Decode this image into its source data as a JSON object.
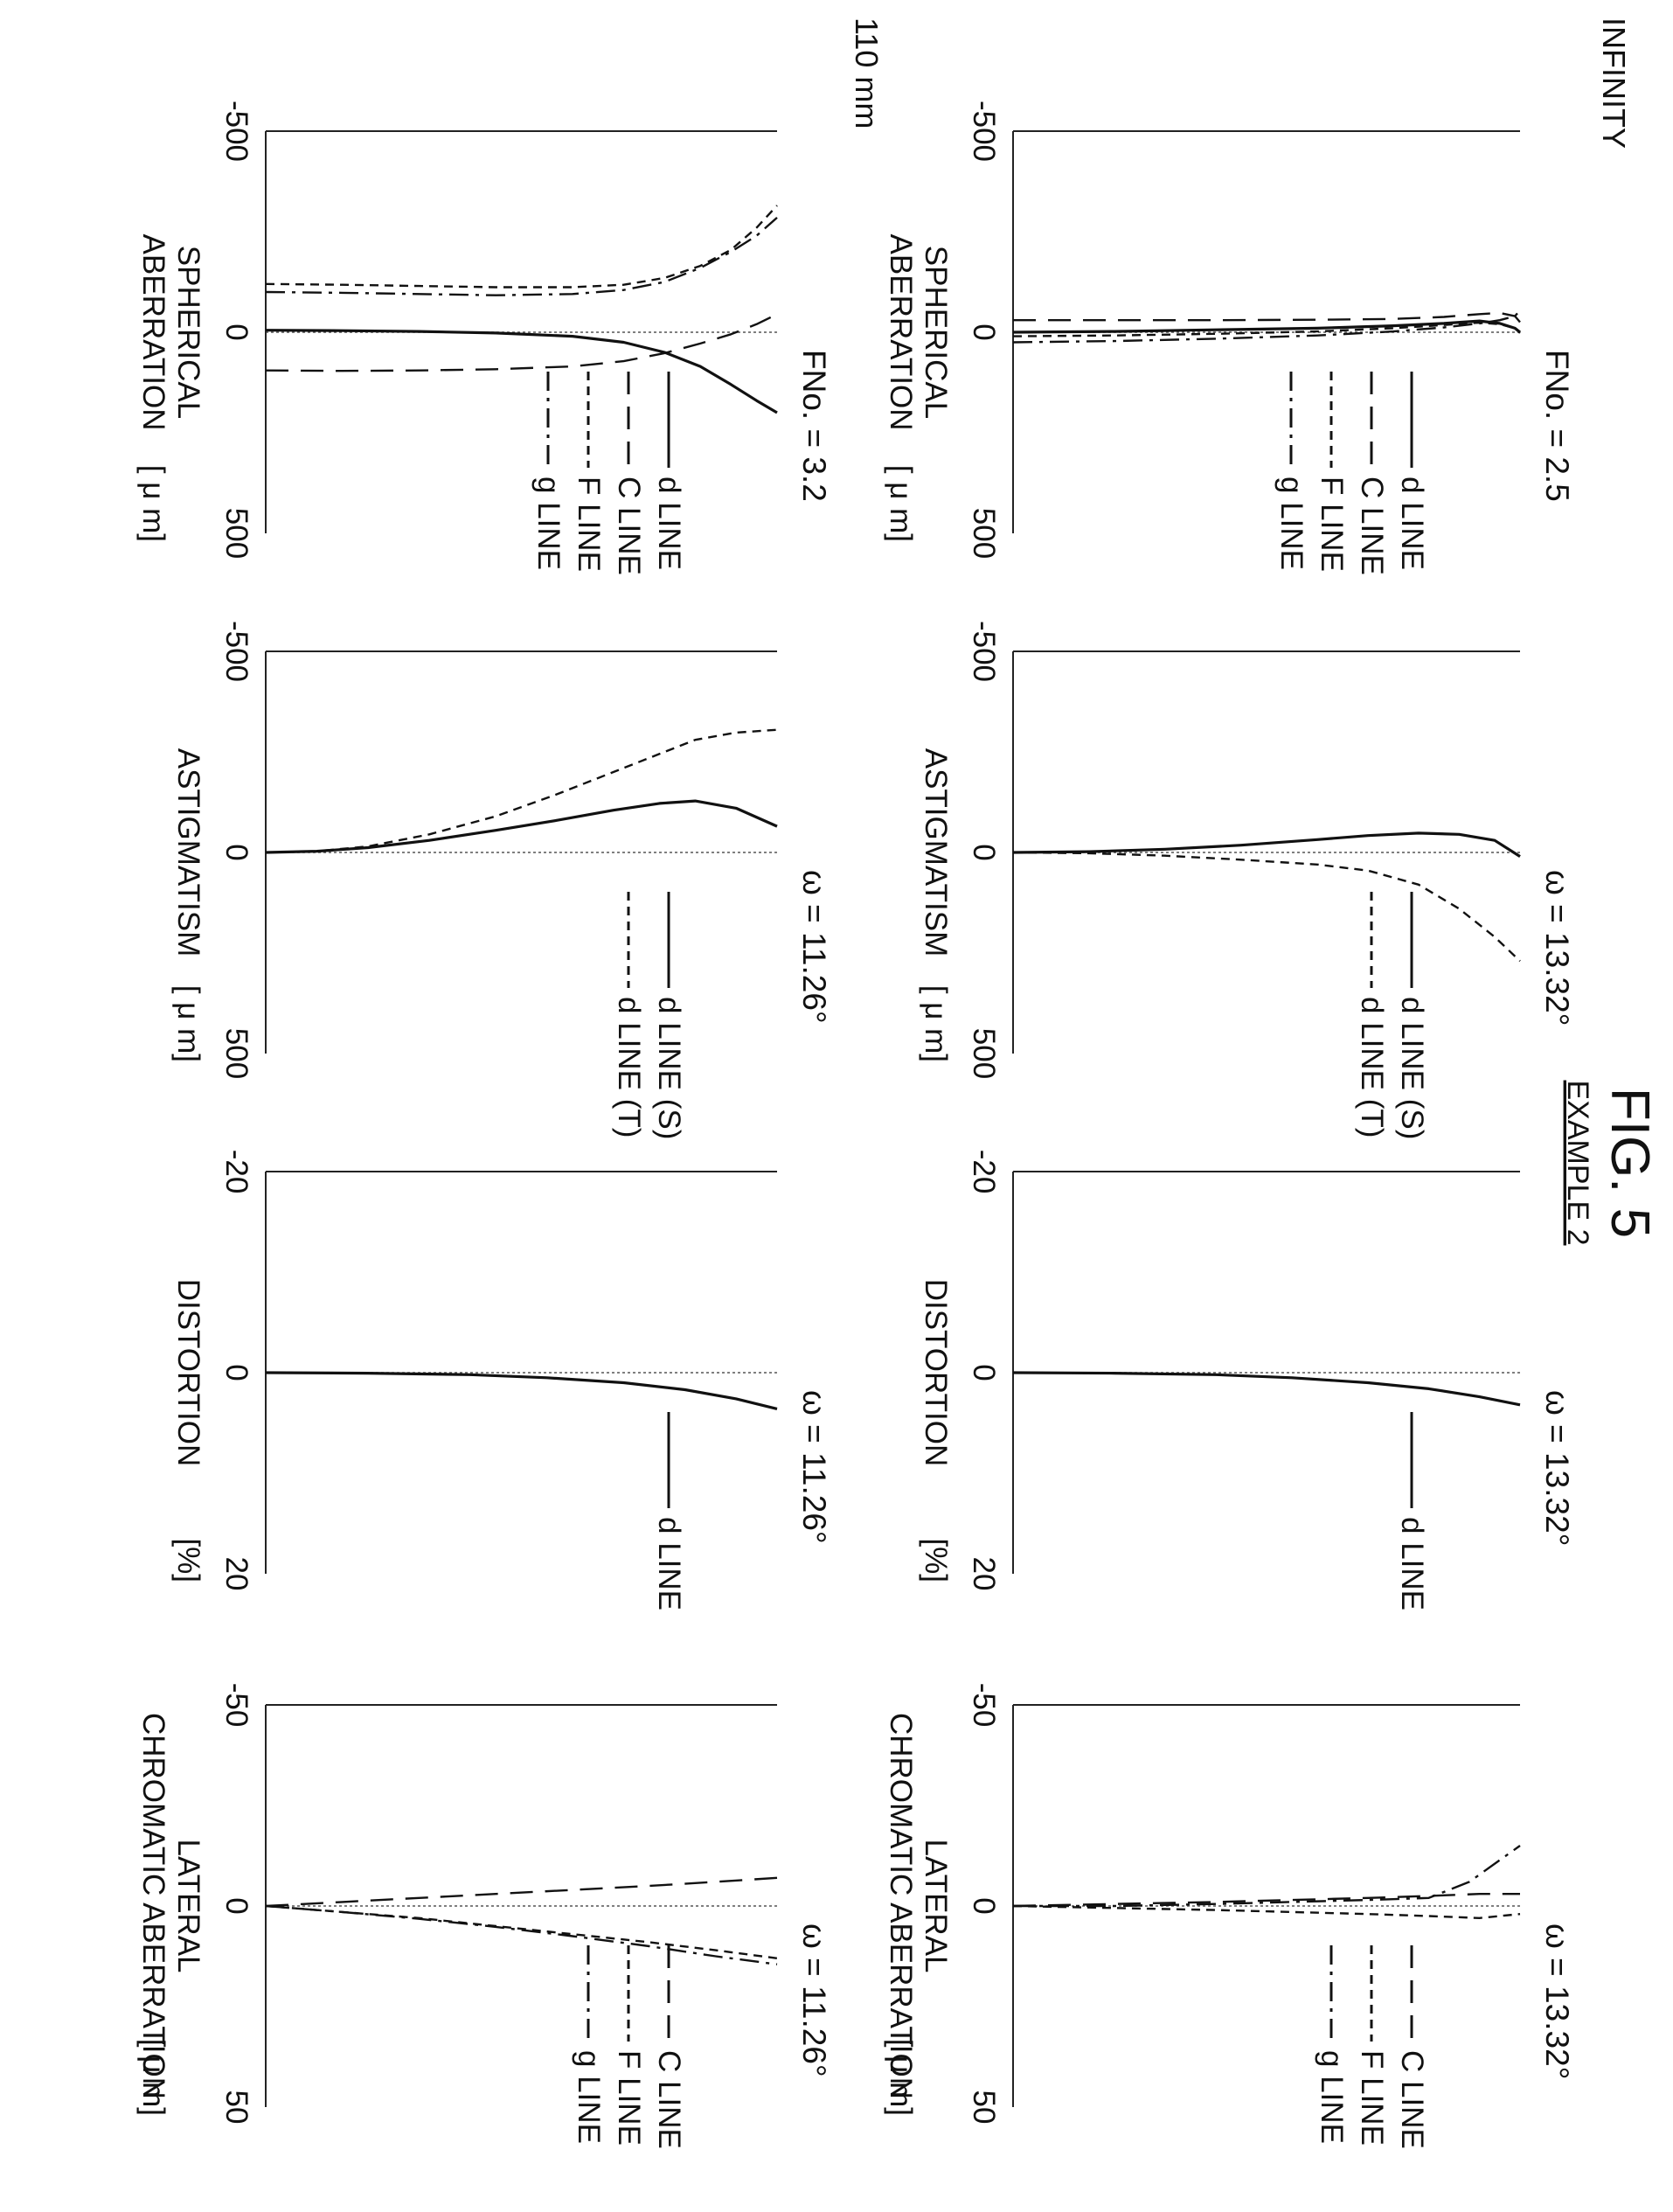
{
  "figure": {
    "title": "FIG. 5",
    "subtitle": "EXAMPLE 2"
  },
  "rows": [
    {
      "condition": "INFINITY"
    },
    {
      "condition": "110 mm"
    }
  ],
  "legends": {
    "spherical": [
      {
        "label": "d LINE",
        "dash": "solid"
      },
      {
        "label": "C LINE",
        "dash": "long-dash"
      },
      {
        "label": "F LINE",
        "dash": "short-dash"
      },
      {
        "label": "g LINE",
        "dash": "dash-dot"
      }
    ],
    "astigmatism": [
      {
        "label": "d LINE (S)",
        "dash": "solid"
      },
      {
        "label": "d LINE (T)",
        "dash": "short-dash"
      }
    ],
    "distortion": [
      {
        "label": "d LINE",
        "dash": "solid"
      }
    ],
    "lateral": [
      {
        "label": "C LINE",
        "dash": "long-dash"
      },
      {
        "label": "F LINE",
        "dash": "short-dash"
      },
      {
        "label": "g LINE",
        "dash": "dash-dot"
      }
    ]
  },
  "chart_data": [
    {
      "id": "sph-inf",
      "type": "line",
      "row": 0,
      "col": 0,
      "legend": "spherical",
      "param_label": "FNo. = 2.5",
      "xlabel": "SPHERICAL ABERRATION",
      "unit": "[ μ m]",
      "xlim": [
        -500,
        500
      ],
      "xticks": [
        "-500",
        "0",
        "500"
      ],
      "ylim": [
        0,
        1
      ],
      "series": [
        {
          "name": "d LINE",
          "dash": "solid",
          "x": [
            0,
            -2,
            -6,
            -10,
            -16,
            -22,
            -28,
            -22,
            -10,
            0
          ],
          "y": [
            0,
            0.2,
            0.4,
            0.6,
            0.75,
            0.85,
            0.92,
            0.96,
            0.99,
            1
          ]
        },
        {
          "name": "C LINE",
          "dash": "long-dash",
          "x": [
            -30,
            -30,
            -30,
            -31,
            -33,
            -38,
            -45,
            -48,
            -40,
            -25
          ],
          "y": [
            0,
            0.2,
            0.4,
            0.6,
            0.75,
            0.85,
            0.92,
            0.96,
            0.99,
            1
          ]
        },
        {
          "name": "F LINE",
          "dash": "short-dash",
          "x": [
            10,
            8,
            4,
            -2,
            -10,
            -18,
            -24,
            -20,
            -10,
            2
          ],
          "y": [
            0,
            0.2,
            0.4,
            0.6,
            0.75,
            0.85,
            0.92,
            0.96,
            0.99,
            1
          ]
        },
        {
          "name": "g LINE",
          "dash": "dash-dot",
          "x": [
            25,
            22,
            16,
            8,
            -2,
            -12,
            -22,
            -30,
            -40,
            -55
          ],
          "y": [
            0,
            0.2,
            0.4,
            0.6,
            0.75,
            0.85,
            0.92,
            0.96,
            0.99,
            1
          ]
        }
      ]
    },
    {
      "id": "ast-inf",
      "type": "line",
      "row": 0,
      "col": 1,
      "legend": "astigmatism",
      "param_label": "ω = 13.32°",
      "xlabel": "ASTIGMATISM",
      "unit": "[ μ m]",
      "xlim": [
        -500,
        500
      ],
      "xticks": [
        "-500",
        "0",
        "500"
      ],
      "ylim": [
        0,
        1
      ],
      "series": [
        {
          "name": "d LINE (S)",
          "dash": "solid",
          "x": [
            0,
            -2,
            -8,
            -18,
            -32,
            -42,
            -48,
            -45,
            -30,
            10
          ],
          "y": [
            0,
            0.15,
            0.3,
            0.45,
            0.6,
            0.7,
            0.8,
            0.88,
            0.95,
            1
          ]
        },
        {
          "name": "d LINE (T)",
          "dash": "short-dash",
          "x": [
            0,
            2,
            8,
            18,
            30,
            45,
            80,
            140,
            210,
            270
          ],
          "y": [
            0,
            0.15,
            0.3,
            0.45,
            0.6,
            0.7,
            0.8,
            0.88,
            0.95,
            1
          ]
        }
      ]
    },
    {
      "id": "dist-inf",
      "type": "line",
      "row": 0,
      "col": 2,
      "legend": "distortion",
      "param_label": "ω = 13.32°",
      "xlabel": "DISTORTION",
      "unit": "[%]",
      "xlim": [
        -20,
        20
      ],
      "xticks": [
        "-20",
        "0",
        "20"
      ],
      "ylim": [
        0,
        1
      ],
      "series": [
        {
          "name": "d LINE",
          "dash": "solid",
          "x": [
            0,
            0.05,
            0.2,
            0.5,
            1.0,
            1.6,
            2.4,
            3.2
          ],
          "y": [
            0,
            0.2,
            0.4,
            0.55,
            0.7,
            0.82,
            0.92,
            1
          ]
        }
      ]
    },
    {
      "id": "lat-inf",
      "type": "line",
      "row": 0,
      "col": 3,
      "legend": "lateral",
      "param_label": "ω = 13.32°",
      "xlabel": "LATERAL CHROMATIC ABERRATION",
      "unit": "[ μ m]",
      "xlim": [
        -50,
        50
      ],
      "xticks": [
        "-50",
        "0",
        "50"
      ],
      "ylim": [
        0,
        1
      ],
      "series": [
        {
          "name": "C LINE",
          "dash": "long-dash",
          "x": [
            0,
            -0.5,
            -1,
            -1.5,
            -2,
            -2.5,
            -3,
            -3
          ],
          "y": [
            0,
            0.2,
            0.4,
            0.55,
            0.7,
            0.82,
            0.92,
            1
          ]
        },
        {
          "name": "F LINE",
          "dash": "short-dash",
          "x": [
            0,
            0.5,
            1,
            1.5,
            2,
            2.5,
            3,
            2
          ],
          "y": [
            0,
            0.2,
            0.4,
            0.55,
            0.7,
            0.82,
            0.92,
            1
          ]
        },
        {
          "name": "g LINE",
          "dash": "dash-dot",
          "x": [
            0,
            0,
            -0.5,
            -1,
            -1.5,
            -2,
            -6,
            -15
          ],
          "y": [
            0,
            0.2,
            0.4,
            0.55,
            0.7,
            0.82,
            0.9,
            1
          ]
        }
      ]
    },
    {
      "id": "sph-110",
      "type": "line",
      "row": 1,
      "col": 0,
      "legend": "spherical",
      "param_label": "FNo. = 3.2",
      "xlabel": "SPHERICAL ABERRATION",
      "unit": "[ μ m]",
      "xlim": [
        -500,
        500
      ],
      "xticks": [
        "-500",
        "0",
        "500"
      ],
      "ylim": [
        0,
        1
      ],
      "series": [
        {
          "name": "d LINE",
          "dash": "solid",
          "x": [
            -5,
            -4,
            -2,
            2,
            10,
            25,
            50,
            85,
            130,
            170,
            200
          ],
          "y": [
            0,
            0.15,
            0.3,
            0.45,
            0.6,
            0.7,
            0.78,
            0.85,
            0.91,
            0.96,
            1
          ]
        },
        {
          "name": "C LINE",
          "dash": "long-dash",
          "x": [
            95,
            96,
            95,
            92,
            85,
            72,
            52,
            28,
            5,
            -20,
            -45
          ],
          "y": [
            0,
            0.15,
            0.3,
            0.45,
            0.6,
            0.7,
            0.78,
            0.85,
            0.91,
            0.96,
            1
          ]
        },
        {
          "name": "F LINE",
          "dash": "short-dash",
          "x": [
            -120,
            -118,
            -115,
            -112,
            -112,
            -118,
            -135,
            -165,
            -205,
            -260,
            -315
          ],
          "y": [
            0,
            0.15,
            0.3,
            0.45,
            0.6,
            0.7,
            0.78,
            0.85,
            0.91,
            0.96,
            1
          ]
        },
        {
          "name": "g LINE",
          "dash": "dash-dot",
          "x": [
            -100,
            -98,
            -95,
            -92,
            -95,
            -105,
            -125,
            -160,
            -200,
            -240,
            -285
          ],
          "y": [
            0,
            0.15,
            0.3,
            0.45,
            0.6,
            0.7,
            0.78,
            0.85,
            0.91,
            0.96,
            1
          ]
        }
      ]
    },
    {
      "id": "ast-110",
      "type": "line",
      "row": 1,
      "col": 1,
      "legend": "astigmatism",
      "param_label": "ω = 11.26°",
      "xlabel": "ASTIGMATISM",
      "unit": "[ μ m]",
      "xlim": [
        -500,
        500
      ],
      "xticks": [
        "-500",
        "0",
        "500"
      ],
      "ylim": [
        0,
        1
      ],
      "series": [
        {
          "name": "d LINE (S)",
          "dash": "solid",
          "x": [
            0,
            -3,
            -12,
            -30,
            -55,
            -80,
            -105,
            -122,
            -128,
            -110,
            -65
          ],
          "y": [
            0,
            0.1,
            0.2,
            0.32,
            0.45,
            0.57,
            0.68,
            0.77,
            0.84,
            0.92,
            1
          ]
        },
        {
          "name": "d LINE (T)",
          "dash": "short-dash",
          "x": [
            0,
            -3,
            -15,
            -45,
            -90,
            -145,
            -200,
            -245,
            -280,
            -298,
            -305
          ],
          "y": [
            0,
            0.1,
            0.2,
            0.32,
            0.45,
            0.57,
            0.68,
            0.77,
            0.84,
            0.92,
            1
          ]
        }
      ]
    },
    {
      "id": "dist-110",
      "type": "line",
      "row": 1,
      "col": 2,
      "legend": "distortion",
      "param_label": "ω = 11.26°",
      "xlabel": "DISTORTION",
      "unit": "[%]",
      "xlim": [
        -20,
        20
      ],
      "xticks": [
        "-20",
        "0",
        "20"
      ],
      "ylim": [
        0,
        1
      ],
      "series": [
        {
          "name": "d LINE",
          "dash": "solid",
          "x": [
            0,
            0.05,
            0.2,
            0.5,
            1.0,
            1.7,
            2.6,
            3.6
          ],
          "y": [
            0,
            0.2,
            0.4,
            0.55,
            0.7,
            0.82,
            0.92,
            1
          ]
        }
      ]
    },
    {
      "id": "lat-110",
      "type": "line",
      "row": 1,
      "col": 3,
      "legend": "lateral",
      "param_label": "ω = 11.26°",
      "xlabel": "LATERAL CHROMATIC ABERRATION",
      "unit": "[ μ m]",
      "xlim": [
        -50,
        50
      ],
      "xticks": [
        "-50",
        "0",
        "50"
      ],
      "ylim": [
        0,
        1
      ],
      "series": [
        {
          "name": "C LINE",
          "dash": "long-dash",
          "x": [
            0,
            -1,
            -2,
            -3,
            -4,
            -5,
            -6,
            -7
          ],
          "y": [
            0,
            0.15,
            0.3,
            0.45,
            0.6,
            0.75,
            0.88,
            1
          ]
        },
        {
          "name": "F LINE",
          "dash": "short-dash",
          "x": [
            0,
            1.5,
            3,
            5,
            7,
            9,
            11,
            13
          ],
          "y": [
            0,
            0.15,
            0.3,
            0.45,
            0.6,
            0.75,
            0.88,
            1
          ]
        },
        {
          "name": "g LINE",
          "dash": "dash-dot",
          "x": [
            0,
            1.5,
            3.2,
            5.2,
            7.5,
            10,
            12.5,
            14.5
          ],
          "y": [
            0,
            0.15,
            0.3,
            0.45,
            0.6,
            0.75,
            0.88,
            1
          ]
        }
      ]
    }
  ]
}
